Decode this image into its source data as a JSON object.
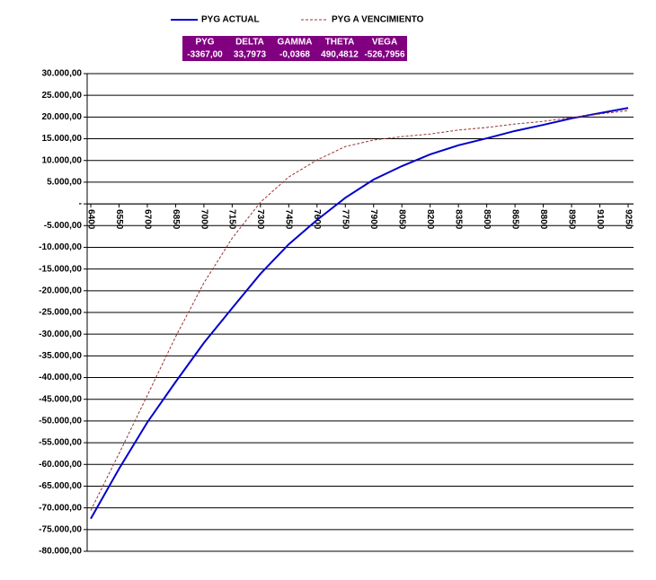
{
  "chart_data": {
    "type": "line",
    "table": {
      "headers": [
        "PYG",
        "DELTA",
        "GAMMA",
        "THETA",
        "VEGA"
      ],
      "values": [
        "-3367,00",
        "33,7973",
        "-0,0368",
        "490,4812",
        "-526,7956"
      ],
      "color": "#800080"
    },
    "x": [
      6400,
      6550,
      6700,
      6850,
      7000,
      7150,
      7300,
      7450,
      7600,
      7750,
      7900,
      8050,
      8200,
      8350,
      8500,
      8650,
      8800,
      8950,
      9100,
      9250
    ],
    "series": [
      {
        "name": "PYG ACTUAL",
        "color": "#0000cc",
        "dash": false,
        "values": [
          -72500,
          -61000,
          -50300,
          -41000,
          -32000,
          -24000,
          -16100,
          -9300,
          -3700,
          1400,
          5600,
          8700,
          11400,
          13500,
          15100,
          16800,
          18200,
          19700,
          20900,
          22100
        ]
      },
      {
        "name": "PYG A VENCIMIENTO",
        "color": "#993333",
        "dash": true,
        "values": [
          -70600,
          -57500,
          -44100,
          -30600,
          -18200,
          -7900,
          400,
          6200,
          10100,
          13200,
          14700,
          15500,
          16100,
          17000,
          17600,
          18400,
          19000,
          19900,
          20700,
          21500
        ]
      }
    ],
    "xlim": [
      6400,
      9250
    ],
    "xticks": [
      6400,
      6550,
      6700,
      6850,
      7000,
      7150,
      7300,
      7450,
      7600,
      7750,
      7900,
      8050,
      8200,
      8350,
      8500,
      8650,
      8800,
      8950,
      9100,
      9250
    ],
    "ylim": [
      -80000,
      30000
    ],
    "yticks": [
      {
        "value": 30000,
        "label": "30.000,00"
      },
      {
        "value": 25000,
        "label": "25.000,00"
      },
      {
        "value": 20000,
        "label": "20.000,00"
      },
      {
        "value": 15000,
        "label": "15.000,00"
      },
      {
        "value": 10000,
        "label": "10.000,00"
      },
      {
        "value": 5000,
        "label": "5.000,00"
      },
      {
        "value": 0,
        "label": "-"
      },
      {
        "value": -5000,
        "label": "-5.000,00"
      },
      {
        "value": -10000,
        "label": "-10.000,00"
      },
      {
        "value": -15000,
        "label": "-15.000,00"
      },
      {
        "value": -20000,
        "label": "-20.000,00"
      },
      {
        "value": -25000,
        "label": "-25.000,00"
      },
      {
        "value": -30000,
        "label": "-30.000,00"
      },
      {
        "value": -35000,
        "label": "-35.000,00"
      },
      {
        "value": -40000,
        "label": "-40.000,00"
      },
      {
        "value": -45000,
        "label": "-45.000,00"
      },
      {
        "value": -50000,
        "label": "-50.000,00"
      },
      {
        "value": -55000,
        "label": "-55.000,00"
      },
      {
        "value": -60000,
        "label": "-60.000,00"
      },
      {
        "value": -65000,
        "label": "-65.000,00"
      },
      {
        "value": -70000,
        "label": "-70.000,00"
      },
      {
        "value": -75000,
        "label": "-75.000,00"
      },
      {
        "value": -80000,
        "label": "-80.000,00"
      }
    ],
    "grid": true
  }
}
